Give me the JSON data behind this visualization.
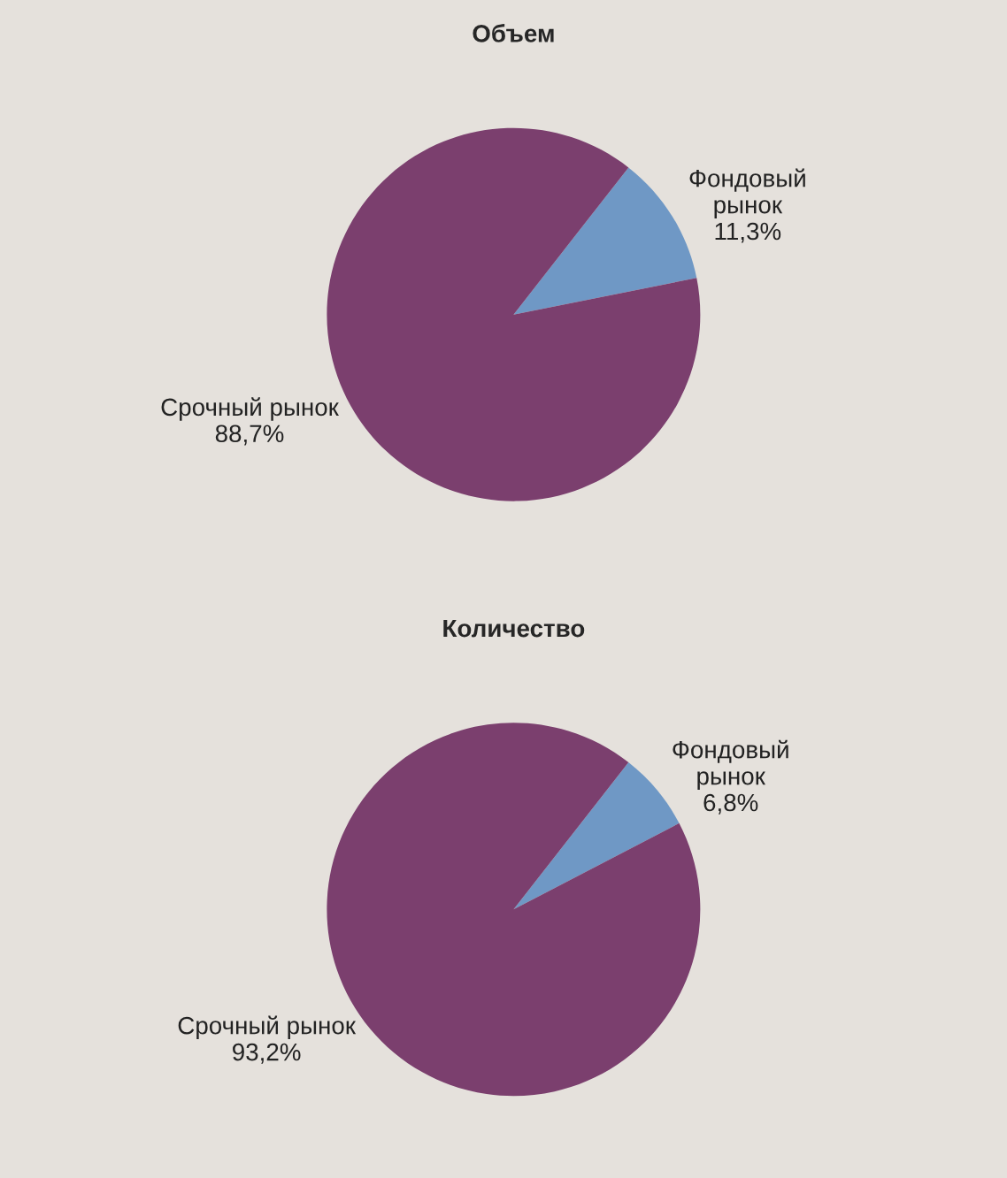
{
  "chart_data": [
    {
      "type": "pie",
      "title": "Объем",
      "categories": [
        "Фондовый\nрынок",
        "Срочный рынок"
      ],
      "values": [
        11.3,
        88.7
      ],
      "colors": [
        "#6f98c5",
        "#7b3f6e"
      ],
      "value_labels": [
        "11,3%",
        "88,7%"
      ]
    },
    {
      "type": "pie",
      "title": "Количество",
      "categories": [
        "Фондовый\nрынок",
        "Срочный рынок"
      ],
      "values": [
        6.8,
        93.2
      ],
      "colors": [
        "#6f98c5",
        "#7b3f6e"
      ],
      "value_labels": [
        "6,8%",
        "93,2%"
      ]
    }
  ]
}
